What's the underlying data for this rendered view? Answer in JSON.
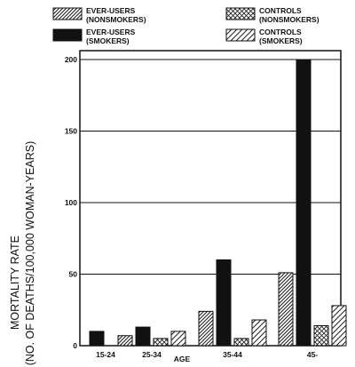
{
  "chart_data": {
    "type": "bar",
    "title": "",
    "xlabel": "AGE",
    "ylabel": [
      "MORTALITY RATE",
      "(NO. OF DEATHS/100,000 WOMAN-YEARS)"
    ],
    "categories": [
      "15-24",
      "25-34",
      "35-44",
      "45-"
    ],
    "ylim": [
      0,
      200
    ],
    "yticks": [
      "0",
      "50",
      "100",
      "150",
      "200"
    ],
    "grid": "horizontal",
    "legend_position": "top",
    "series": [
      {
        "name": [
          "EVER-USERS",
          "(NONSMOKERS)"
        ],
        "fill": "hatch",
        "values": [
          0,
          7,
          24,
          51
        ]
      },
      {
        "name": [
          "EVER-USERS",
          "(SMOKERS)"
        ],
        "fill": "solid",
        "values": [
          10,
          13,
          60,
          200
        ]
      },
      {
        "name": [
          "CONTROLS",
          "(NONSMOKERS)"
        ],
        "fill": "crosshatch",
        "values": [
          0,
          5,
          5,
          14
        ]
      },
      {
        "name": [
          "CONTROLS",
          "(SMOKERS)"
        ],
        "fill": "hatch-sparse",
        "values": [
          0,
          10,
          18,
          28
        ]
      }
    ]
  }
}
